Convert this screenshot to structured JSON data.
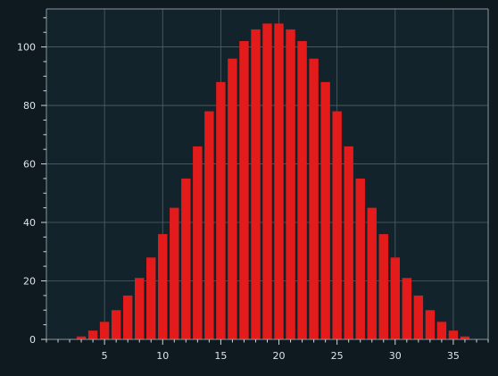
{
  "colors": {
    "background": "#0e1a20",
    "plot_background": "#13232b",
    "bar": "#e31b1b",
    "grid": "#4f6168",
    "text": "#e0e4e6"
  },
  "chart_data": {
    "type": "bar",
    "title": "",
    "xlabel": "",
    "ylabel": "",
    "x": [
      3,
      4,
      5,
      6,
      7,
      8,
      9,
      10,
      11,
      12,
      13,
      14,
      15,
      16,
      17,
      18,
      19,
      20,
      21,
      22,
      23,
      24,
      25,
      26,
      27,
      28,
      29,
      30,
      31,
      32,
      33,
      34,
      35,
      36
    ],
    "values": [
      1,
      3,
      6,
      10,
      15,
      21,
      28,
      36,
      45,
      55,
      66,
      78,
      88,
      96,
      102,
      106,
      108,
      108,
      106,
      102,
      96,
      88,
      78,
      66,
      55,
      45,
      36,
      28,
      21,
      15,
      10,
      6,
      3,
      1
    ],
    "xlim": [
      0,
      38
    ],
    "ylim": [
      0,
      113
    ],
    "x_ticks": [
      5,
      10,
      15,
      20,
      25,
      30,
      35
    ],
    "y_ticks": [
      0,
      20,
      40,
      60,
      80,
      100
    ],
    "grid": true,
    "minor_ticks": true
  }
}
